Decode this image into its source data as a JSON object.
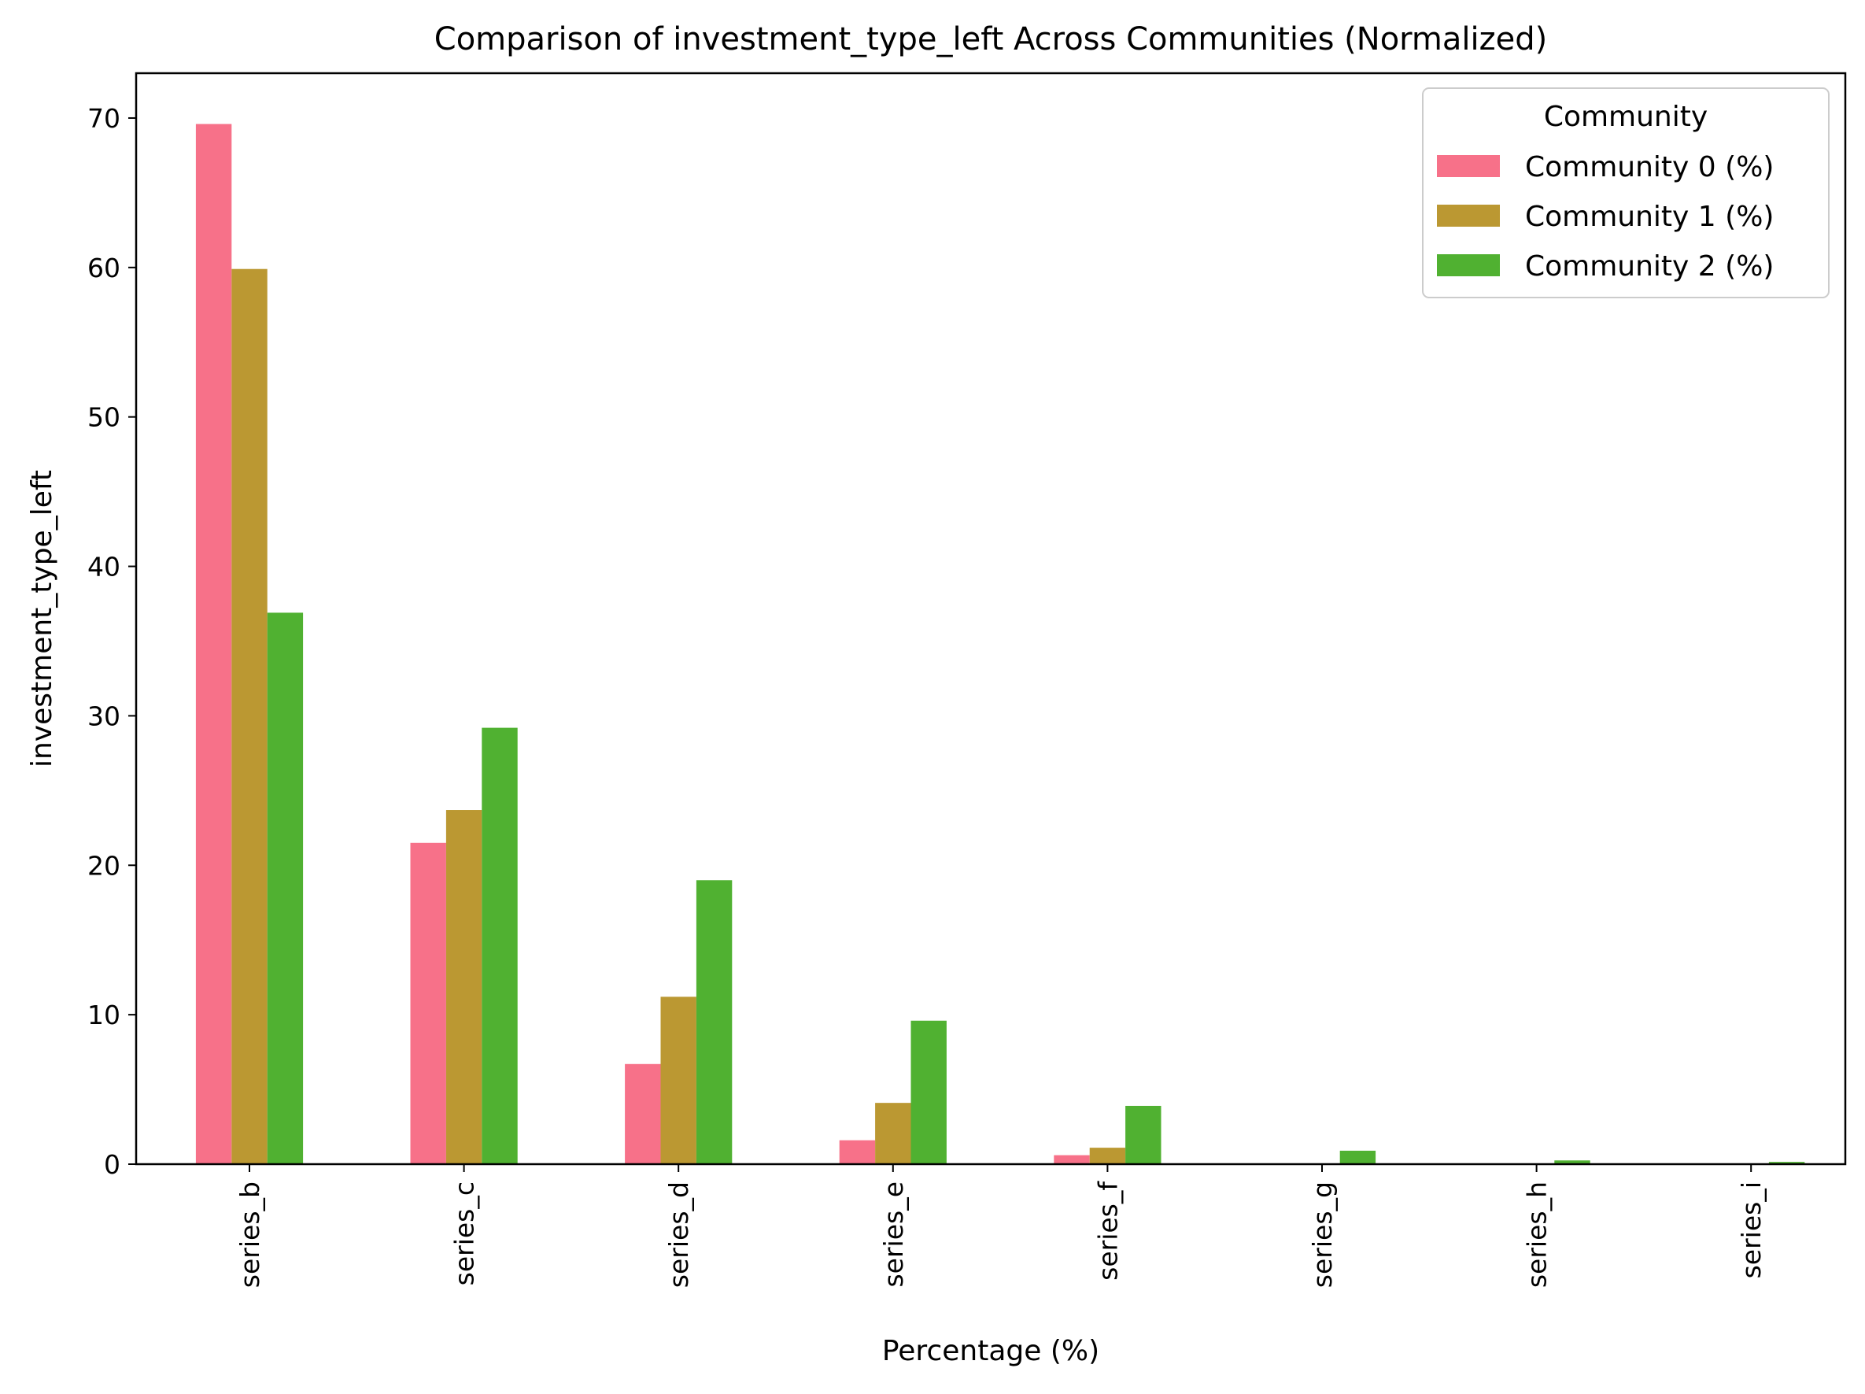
{
  "chart_data": {
    "type": "bar",
    "title": "Comparison of investment_type_left Across Communities (Normalized)",
    "xlabel": "Percentage (%)",
    "ylabel": "investment_type_left",
    "categories": [
      "series_b",
      "series_c",
      "series_d",
      "series_e",
      "series_f",
      "series_g",
      "series_h",
      "series_i"
    ],
    "series": [
      {
        "name": "Community 0 (%)",
        "color": "#f77189",
        "values": [
          69.6,
          21.5,
          6.7,
          1.6,
          0.6,
          0.05,
          0.0,
          0.0
        ]
      },
      {
        "name": "Community 1 (%)",
        "color": "#bb9832",
        "values": [
          59.9,
          23.7,
          11.2,
          4.1,
          1.1,
          0.05,
          0.0,
          0.0
        ]
      },
      {
        "name": "Community 2 (%)",
        "color": "#50b131",
        "values": [
          36.9,
          29.2,
          19.0,
          9.6,
          3.9,
          0.9,
          0.25,
          0.15
        ]
      }
    ],
    "ylim": [
      0,
      73
    ],
    "yticks": [
      0,
      10,
      20,
      30,
      40,
      50,
      60,
      70
    ],
    "legend": {
      "title": "Community",
      "position": "top-right"
    },
    "grid": false
  }
}
